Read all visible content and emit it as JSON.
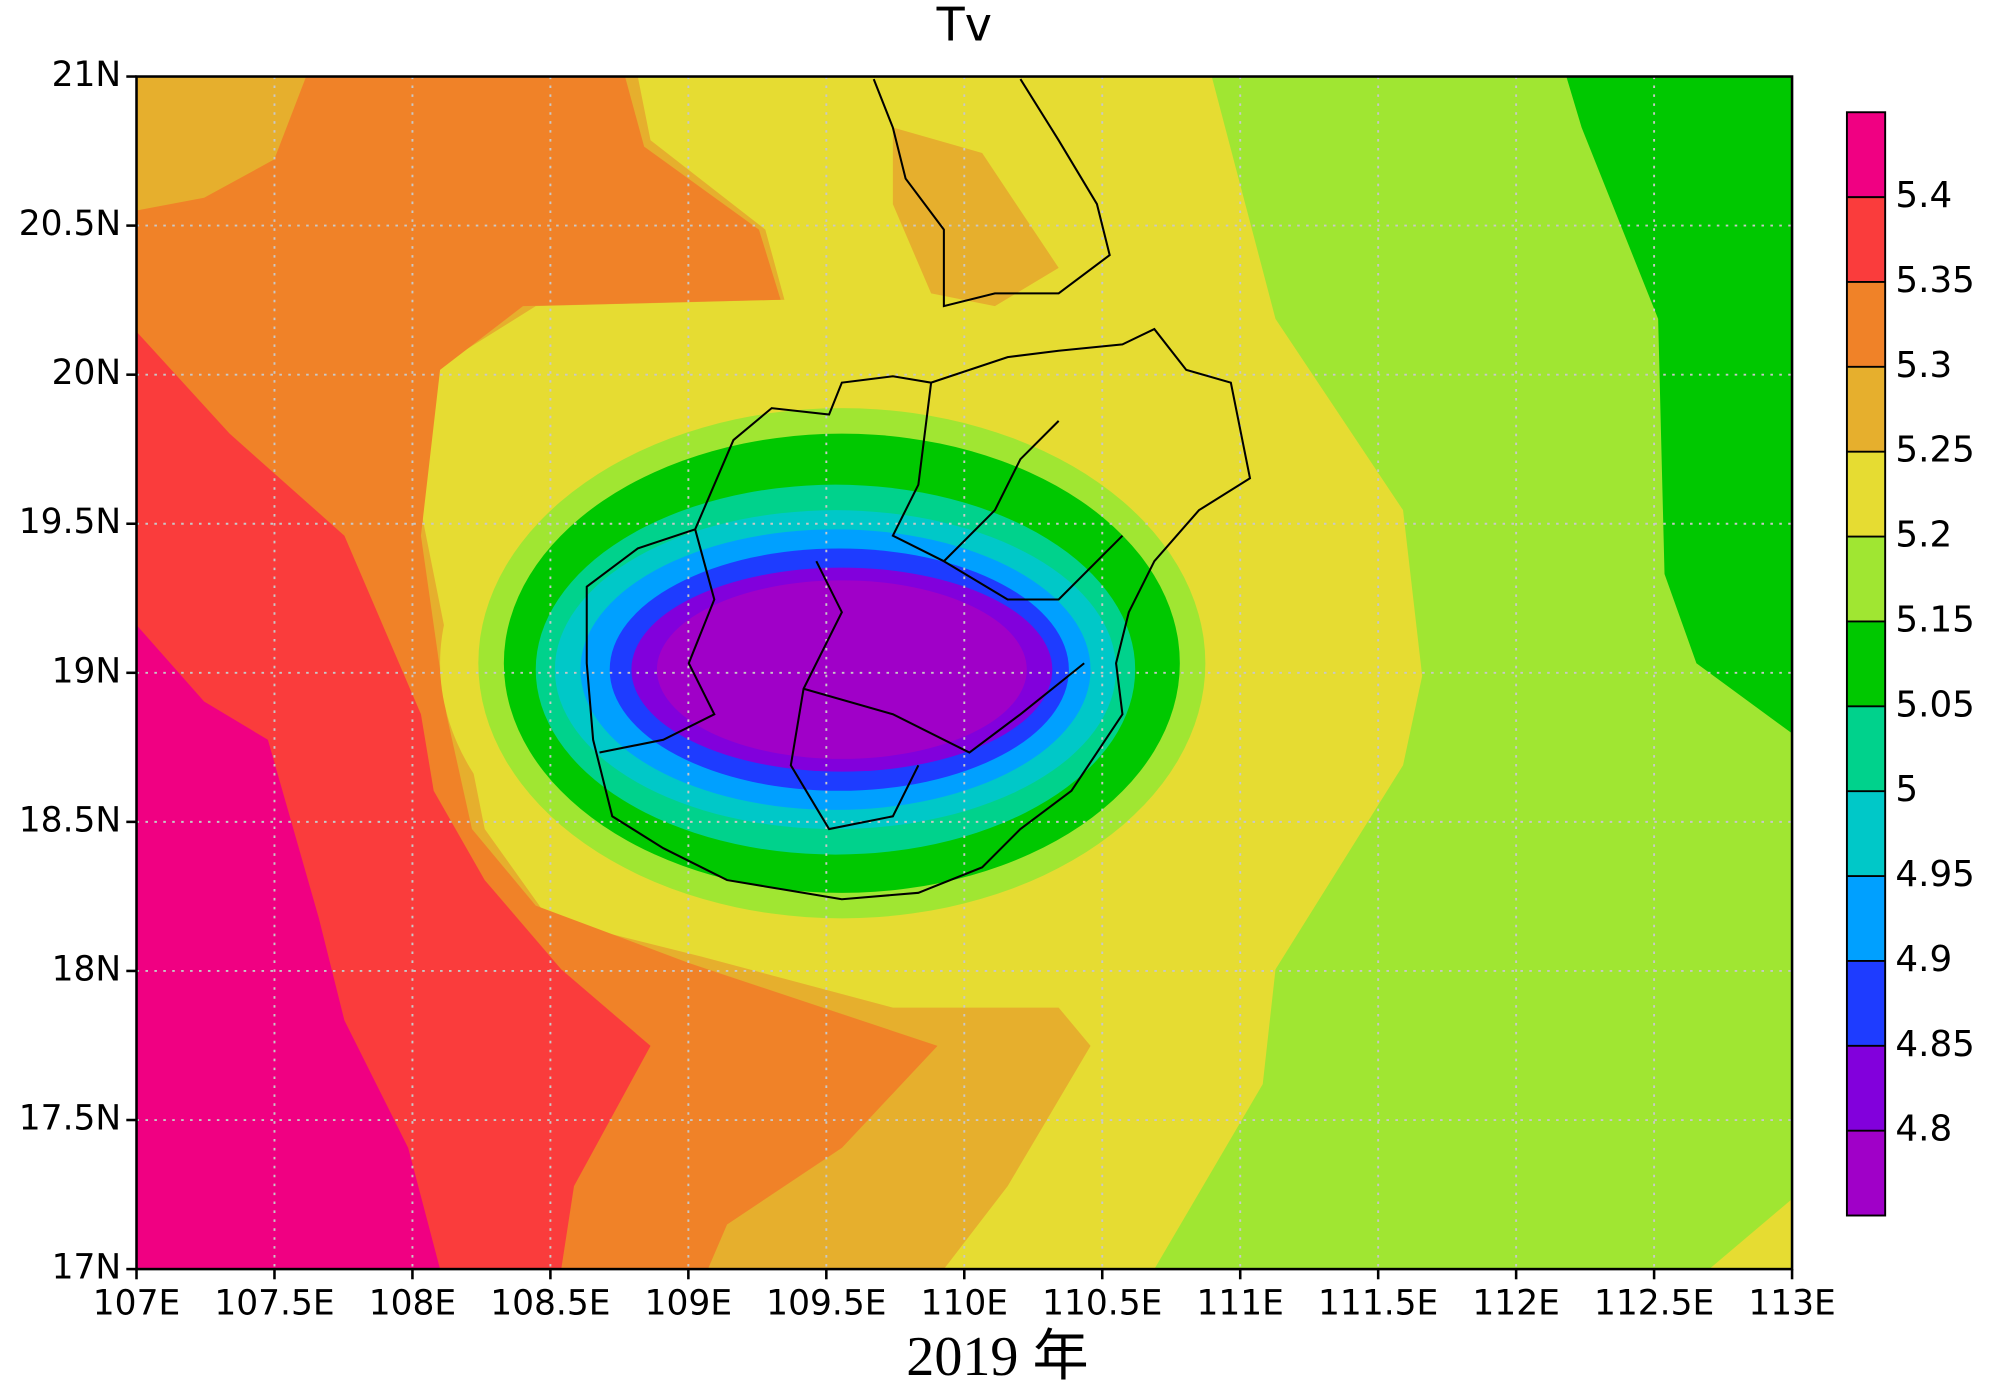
{
  "chart_data": {
    "type": "contour-map",
    "title": "Tv",
    "caption": "2019 年",
    "xlim": [
      107,
      113
    ],
    "ylim": [
      17,
      21
    ],
    "xticks": [
      {
        "value": 107,
        "label": "107E"
      },
      {
        "value": 107.5,
        "label": "107.5E"
      },
      {
        "value": 108,
        "label": "108E"
      },
      {
        "value": 108.5,
        "label": "108.5E"
      },
      {
        "value": 109,
        "label": "109E"
      },
      {
        "value": 109.5,
        "label": "109.5E"
      },
      {
        "value": 110,
        "label": "110E"
      },
      {
        "value": 110.5,
        "label": "110.5E"
      },
      {
        "value": 111,
        "label": "111E"
      },
      {
        "value": 111.5,
        "label": "111.5E"
      },
      {
        "value": 112,
        "label": "112E"
      },
      {
        "value": 112.5,
        "label": "112.5E"
      },
      {
        "value": 113,
        "label": "113E"
      }
    ],
    "yticks": [
      {
        "value": 17,
        "label": "17N"
      },
      {
        "value": 17.5,
        "label": "17.5N"
      },
      {
        "value": 18,
        "label": "18N"
      },
      {
        "value": 18.5,
        "label": "18.5N"
      },
      {
        "value": 19,
        "label": "19N"
      },
      {
        "value": 19.5,
        "label": "19.5N"
      },
      {
        "value": 20,
        "label": "20N"
      },
      {
        "value": 20.5,
        "label": "20.5N"
      },
      {
        "value": 21,
        "label": "21N"
      }
    ],
    "grid": true,
    "colorbar": {
      "levels": [
        4.8,
        4.85,
        4.9,
        4.95,
        5,
        5.05,
        5.15,
        5.2,
        5.25,
        5.3,
        5.35,
        5.4
      ],
      "colors": [
        "#a000c8",
        "#8200dc",
        "#1e3cff",
        "#00a0ff",
        "#00c8c8",
        "#00d28c",
        "#00c800",
        "#a0e632",
        "#e6dc32",
        "#e6af2d",
        "#f08228",
        "#fa3c3c",
        "#f00082"
      ]
    }
  }
}
